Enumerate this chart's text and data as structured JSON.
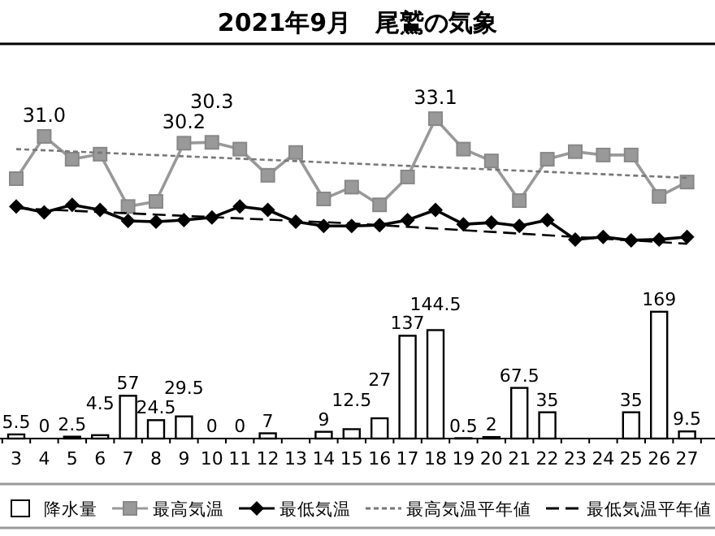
{
  "chart_data": [
    {
      "type": "line",
      "title": "2021年9月　尾鷲の気象",
      "categories": [
        "3",
        "4",
        "5",
        "6",
        "7",
        "8",
        "9",
        "10",
        "11",
        "12",
        "13",
        "14",
        "15",
        "16",
        "17",
        "18",
        "19",
        "20",
        "21",
        "22",
        "23",
        "24",
        "25",
        "26",
        "27"
      ],
      "tick_labels": false,
      "series": [
        {
          "name": "最高気温",
          "color": "#999999",
          "marker": "square",
          "line_style": "solid",
          "values": [
            26.0,
            31.0,
            28.3,
            28.9,
            22.7,
            23.3,
            30.2,
            30.3,
            29.5,
            26.4,
            29.1,
            23.6,
            25.0,
            22.9,
            26.2,
            33.1,
            29.5,
            28.1,
            23.4,
            28.3,
            29.2,
            28.8,
            28.8,
            23.9,
            25.6
          ],
          "value_labels": [
            null,
            "31.0",
            null,
            null,
            null,
            null,
            "30.2",
            "30.3",
            null,
            null,
            null,
            null,
            null,
            null,
            null,
            "33.1",
            null,
            null,
            null,
            null,
            null,
            null,
            null,
            null,
            null
          ]
        },
        {
          "name": "最低気温",
          "color": "#000000",
          "marker": "diamond",
          "line_style": "solid",
          "values": [
            22.7,
            22.0,
            22.9,
            22.3,
            21.0,
            20.9,
            21.1,
            21.4,
            22.7,
            22.3,
            20.9,
            20.4,
            20.4,
            20.5,
            21.1,
            22.3,
            20.6,
            20.8,
            20.4,
            21.1,
            18.8,
            19.1,
            18.7,
            18.8,
            19.1
          ]
        },
        {
          "name": "最高気温平年値",
          "color": "#777777",
          "marker": "none",
          "line_style": "dotted",
          "x": [
            "3",
            "27"
          ],
          "values": [
            29.5,
            26.1
          ]
        },
        {
          "name": "最低気温平年値",
          "color": "#000000",
          "marker": "none",
          "line_style": "dashed",
          "x": [
            "3",
            "15",
            "27"
          ],
          "values": [
            22.5,
            20.7,
            18.3
          ]
        }
      ],
      "legend": "bottom"
    },
    {
      "type": "bar",
      "categories": [
        "3",
        "4",
        "5",
        "6",
        "7",
        "8",
        "9",
        "10",
        "11",
        "12",
        "13",
        "14",
        "15",
        "16",
        "17",
        "18",
        "19",
        "20",
        "21",
        "22",
        "23",
        "24",
        "25",
        "26",
        "27"
      ],
      "series": [
        {
          "name": "降水量",
          "color": "#ffffff",
          "values": [
            5.5,
            0,
            2.5,
            4.5,
            57,
            24.5,
            29.5,
            0,
            0,
            7,
            null,
            9,
            12.5,
            27,
            137,
            144.5,
            0.5,
            2,
            67.5,
            35,
            null,
            null,
            35,
            169,
            9.5
          ],
          "value_labels": [
            "5.5",
            "0",
            "2.5",
            "4.5",
            "57",
            "24.5",
            "29.5",
            "0",
            "0",
            "7",
            null,
            "9",
            "12.5",
            "27",
            "137",
            "144.5",
            "0.5",
            "2",
            "67.5",
            "35",
            null,
            null,
            "35",
            "169",
            "9.5"
          ]
        }
      ],
      "legend": "bottom"
    }
  ]
}
